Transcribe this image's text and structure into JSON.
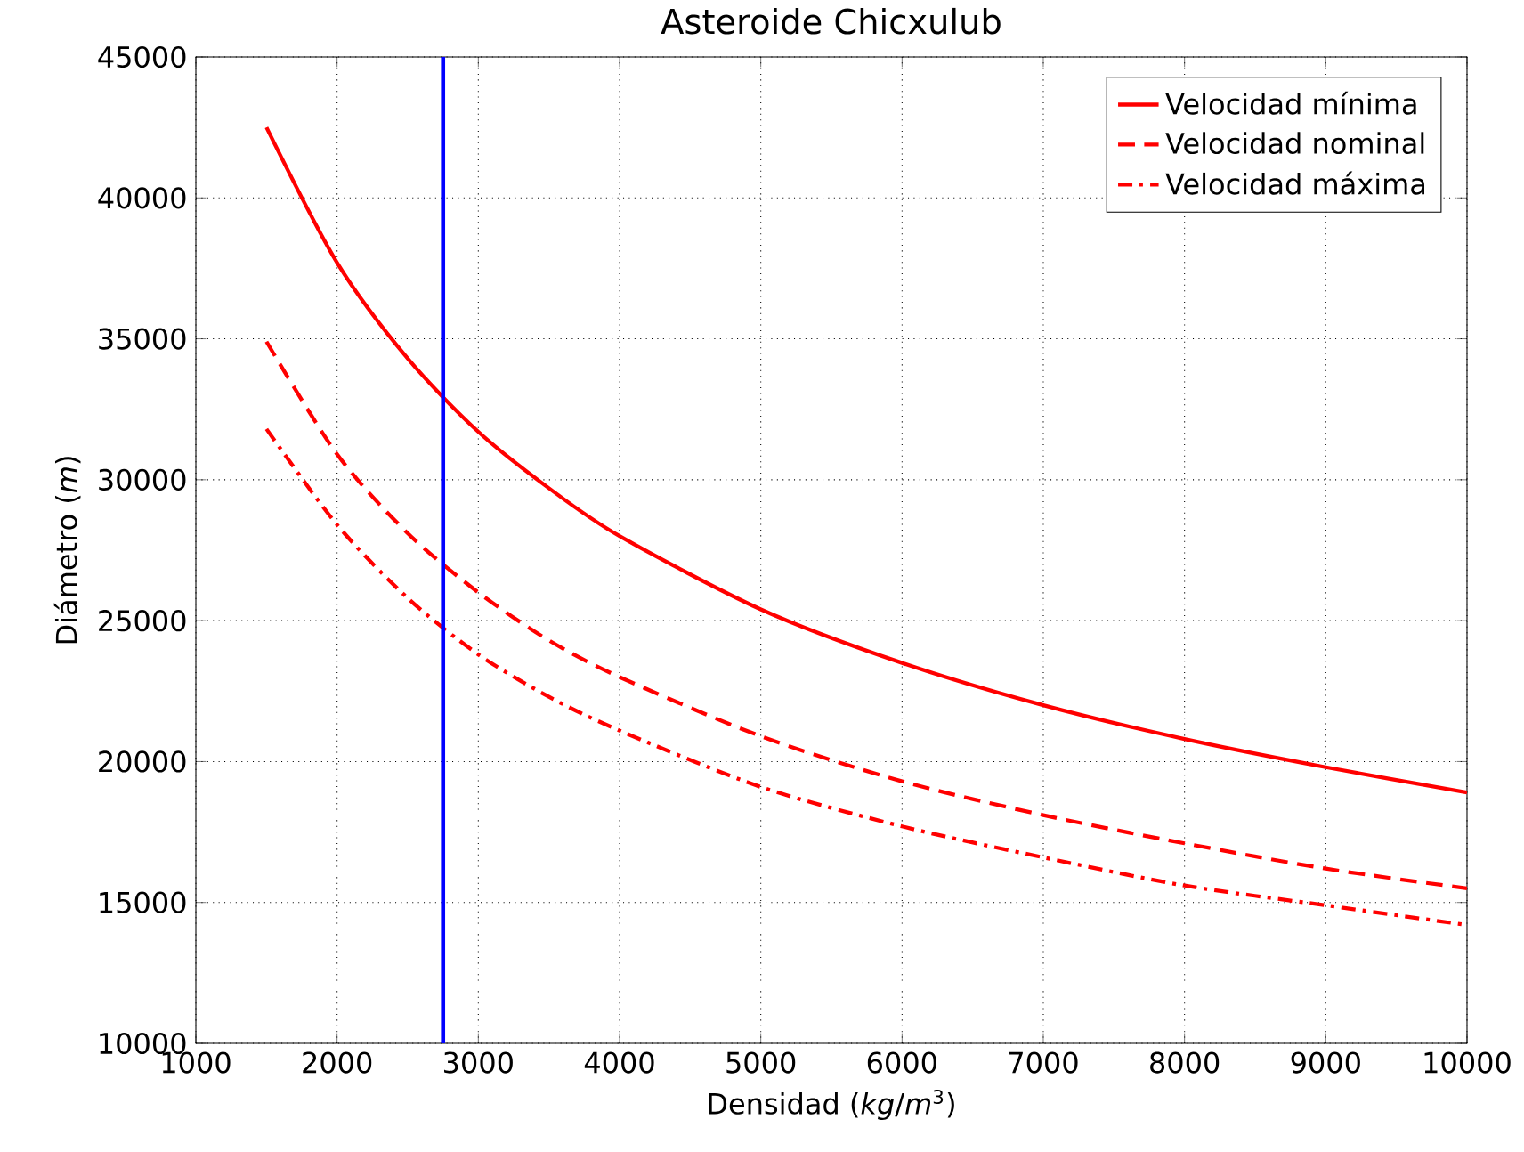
{
  "chart_data": {
    "type": "line",
    "title": "Asteroide Chicxulub",
    "xlabel": "Densidad (*kg*/*m*$^{3}$)",
    "ylabel": "Diámetro (*m*)",
    "x": [
      1500,
      2000,
      2500,
      3000,
      3500,
      4000,
      5000,
      6000,
      7000,
      8000,
      9000,
      10000
    ],
    "series": [
      {
        "name": "Velocidad mínima",
        "color": "#ff0000",
        "line_style": "solid",
        "values": [
          42500,
          37700,
          34300,
          31700,
          29700,
          28000,
          25400,
          23500,
          22000,
          20800,
          19800,
          18900
        ]
      },
      {
        "name": "Velocidad nominal",
        "color": "#ff0000",
        "line_style": "dashed",
        "values": [
          34900,
          30900,
          28100,
          26000,
          24300,
          23000,
          20900,
          19300,
          18100,
          17100,
          16200,
          15500
        ]
      },
      {
        "name": "Velocidad máxima",
        "color": "#ff0000",
        "line_style": "dashdot",
        "values": [
          31800,
          28400,
          25800,
          23800,
          22300,
          21100,
          19100,
          17700,
          16600,
          15600,
          14900,
          14200
        ]
      }
    ],
    "xlim": [
      1000,
      10000
    ],
    "ylim": [
      10000,
      45000
    ],
    "xticks": [
      1000,
      2000,
      3000,
      4000,
      5000,
      6000,
      7000,
      8000,
      9000,
      10000
    ],
    "yticks": [
      10000,
      15000,
      20000,
      25000,
      30000,
      35000,
      40000,
      45000
    ],
    "ref_lines": [
      {
        "axis": "x",
        "value": 2750,
        "color": "#0000ff"
      }
    ],
    "grid": true,
    "legend": "top right"
  }
}
